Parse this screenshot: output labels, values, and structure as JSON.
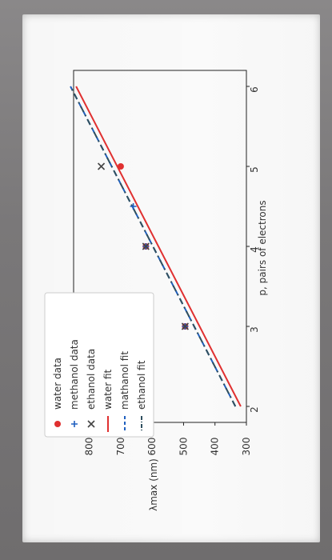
{
  "chart_data": {
    "type": "scatter",
    "xlabel": "p, pairs of electrons",
    "ylabel": "λmax (nm)",
    "xlim": [
      1.8,
      6.2
    ],
    "ylim": [
      300,
      850
    ],
    "xticks": [
      "2",
      "3",
      "4",
      "5",
      "6"
    ],
    "yticks": [
      "300",
      "400",
      "500",
      "600",
      "700",
      "800"
    ],
    "legend_position": "top-left",
    "series": [
      {
        "name": "water data",
        "kind": "scatter",
        "marker": "circle",
        "color": "#e03030",
        "points": [
          [
            3.0,
            495
          ],
          [
            4.0,
            620
          ],
          [
            5.0,
            700
          ]
        ]
      },
      {
        "name": "methanol data",
        "kind": "scatter",
        "marker": "plus",
        "color": "#1f5fbf",
        "points": [
          [
            3.0,
            495
          ],
          [
            4.0,
            620
          ],
          [
            4.5,
            660
          ]
        ]
      },
      {
        "name": "ethanol data",
        "kind": "scatter",
        "marker": "x",
        "color": "#444444",
        "points": [
          [
            3.0,
            495
          ],
          [
            4.0,
            620
          ],
          [
            5.0,
            762
          ]
        ]
      },
      {
        "name": "water fit",
        "kind": "line",
        "style": "solid",
        "color": "#e03030",
        "points": [
          [
            2.0,
            318
          ],
          [
            6.0,
            842
          ]
        ]
      },
      {
        "name": "mathanol fit",
        "kind": "line",
        "style": "dashed",
        "color": "#1f5fbf",
        "points": [
          [
            2.0,
            335
          ],
          [
            6.0,
            860
          ]
        ]
      },
      {
        "name": "ethanol fit",
        "kind": "line",
        "style": "dashdot",
        "color": "#2f4f5f",
        "points": [
          [
            2.0,
            335
          ],
          [
            6.0,
            860
          ]
        ]
      }
    ]
  }
}
